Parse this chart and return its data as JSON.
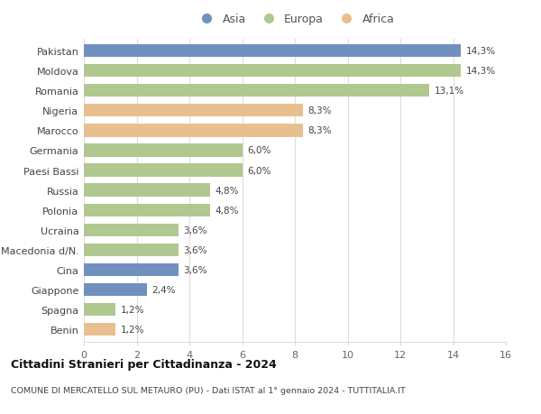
{
  "categories": [
    "Pakistan",
    "Moldova",
    "Romania",
    "Nigeria",
    "Marocco",
    "Germania",
    "Paesi Bassi",
    "Russia",
    "Polonia",
    "Ucraina",
    "Macedonia d/N.",
    "Cina",
    "Giappone",
    "Spagna",
    "Benin"
  ],
  "values": [
    14.3,
    14.3,
    13.1,
    8.3,
    8.3,
    6.0,
    6.0,
    4.8,
    4.8,
    3.6,
    3.6,
    3.6,
    2.4,
    1.2,
    1.2
  ],
  "labels": [
    "14,3%",
    "14,3%",
    "13,1%",
    "8,3%",
    "8,3%",
    "6,0%",
    "6,0%",
    "4,8%",
    "4,8%",
    "3,6%",
    "3,6%",
    "3,6%",
    "2,4%",
    "1,2%",
    "1,2%"
  ],
  "continents": [
    "Asia",
    "Europa",
    "Europa",
    "Africa",
    "Africa",
    "Europa",
    "Europa",
    "Europa",
    "Europa",
    "Europa",
    "Europa",
    "Asia",
    "Asia",
    "Europa",
    "Africa"
  ],
  "colors": {
    "Asia": "#7090c0",
    "Europa": "#b0c890",
    "Africa": "#e8c090"
  },
  "title": "Cittadini Stranieri per Cittadinanza - 2024",
  "subtitle": "COMUNE DI MERCATELLO SUL METAURO (PU) - Dati ISTAT al 1° gennaio 2024 - TUTTITALIA.IT",
  "xlim": [
    0,
    16
  ],
  "xticks": [
    0,
    2,
    4,
    6,
    8,
    10,
    12,
    14,
    16
  ],
  "background_color": "#ffffff",
  "grid_color": "#dddddd"
}
